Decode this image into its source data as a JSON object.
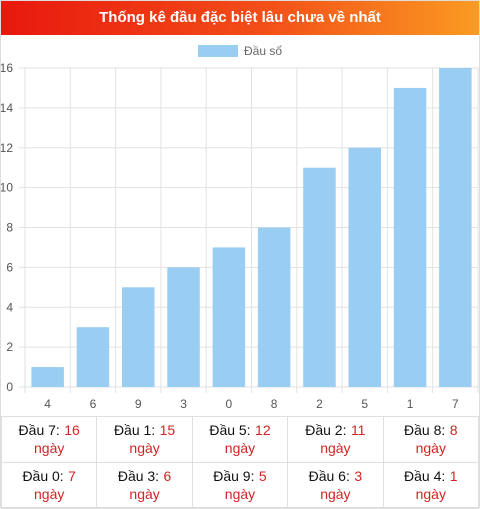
{
  "header": {
    "title": "Thống kê đầu đặc biệt lâu chưa về nhất"
  },
  "chart_data": {
    "type": "bar",
    "title": "",
    "legend": {
      "label": "Đầu số",
      "position": "top-center",
      "color": "#99cdf2"
    },
    "categories": [
      "4",
      "6",
      "9",
      "3",
      "0",
      "8",
      "2",
      "5",
      "1",
      "7"
    ],
    "series": [
      {
        "name": "Đầu số",
        "values": [
          1,
          3,
          5,
          6,
          7,
          8,
          11,
          12,
          15,
          16
        ]
      }
    ],
    "ylim": [
      0,
      16
    ],
    "yticks": [
      0,
      2,
      4,
      6,
      8,
      10,
      12,
      14,
      16
    ],
    "grid": true,
    "xlabel": "",
    "ylabel": ""
  },
  "stats": {
    "unit": "ngày",
    "rows": [
      [
        {
          "label": "Đầu 7:",
          "value": "16"
        },
        {
          "label": "Đầu 1:",
          "value": "15"
        },
        {
          "label": "Đầu 5:",
          "value": "12"
        },
        {
          "label": "Đầu 2:",
          "value": "11"
        },
        {
          "label": "Đầu 8:",
          "value": "8"
        }
      ],
      [
        {
          "label": "Đầu 0:",
          "value": "7"
        },
        {
          "label": "Đầu 3:",
          "value": "6"
        },
        {
          "label": "Đầu 9:",
          "value": "5"
        },
        {
          "label": "Đầu 6:",
          "value": "3"
        },
        {
          "label": "Đầu 4:",
          "value": "1"
        }
      ]
    ]
  }
}
